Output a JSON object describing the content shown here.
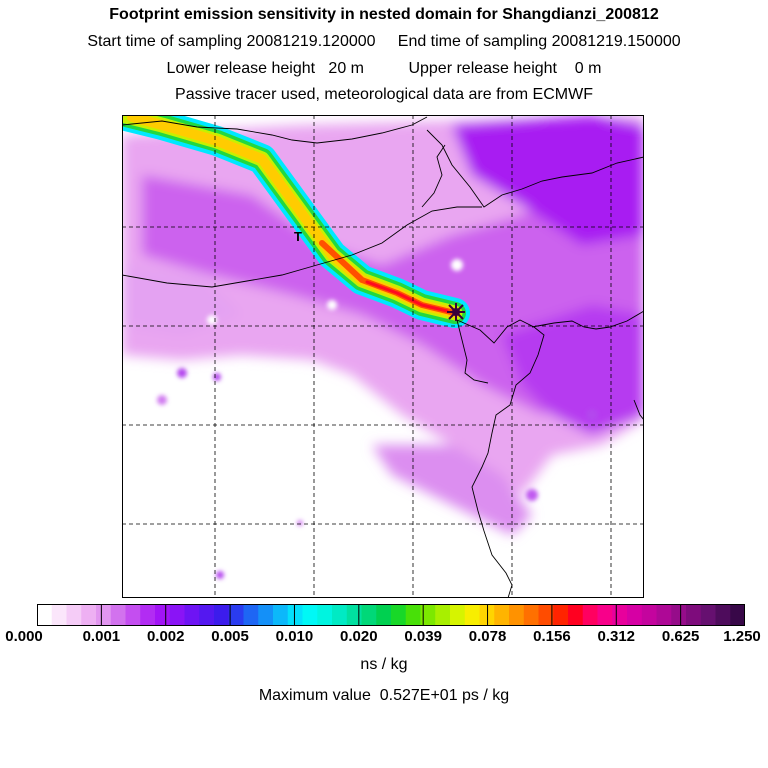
{
  "header": {
    "title": "Footprint emission sensitivity in nested domain for Shangdianzi_200812",
    "sampling_line": "Start time of sampling 20081219.120000     End time of sampling 20081219.150000",
    "height_line": "Lower release height   20 m          Upper release height    0 m",
    "tracer_line": "Passive tracer used, meteorological data are from ECMWF"
  },
  "map": {
    "site_marker_icon": "star-cross-icon",
    "plume_label": "T",
    "gridlines": "dashed"
  },
  "colorbar": {
    "unit": "ns / kg",
    "tick_labels": [
      "0.000",
      "0.001",
      "0.002",
      "0.005",
      "0.010",
      "0.020",
      "0.039",
      "0.078",
      "0.156",
      "0.312",
      "0.625",
      "1.250"
    ],
    "colors": [
      "#ffffff",
      "#fbe6fb",
      "#f5ccf7",
      "#eeb0f3",
      "#e296f0",
      "#d272ee",
      "#c44ef0",
      "#b22cf3",
      "#a214f6",
      "#8a14f6",
      "#6e14f4",
      "#5418f0",
      "#3c1cec",
      "#2a3cf0",
      "#1e66f4",
      "#1490f8",
      "#0cb8fa",
      "#04e0fc",
      "#00f8f6",
      "#00f4e0",
      "#00eac4",
      "#00e0a0",
      "#00d878",
      "#00d050",
      "#18d828",
      "#48e008",
      "#7ce800",
      "#a8ef00",
      "#d6f400",
      "#f8ee00",
      "#ffd400",
      "#ffb400",
      "#ff9200",
      "#ff7000",
      "#ff4c00",
      "#ff2400",
      "#ff0020",
      "#ff0060",
      "#f8008a",
      "#e8009c",
      "#d600a4",
      "#c4049e",
      "#ae0896",
      "#960c8a",
      "#7e0c7c",
      "#661070",
      "#4e0c5c",
      "#380848"
    ]
  },
  "footer": {
    "max_value": "Maximum value  0.527E+01 ps / kg"
  }
}
